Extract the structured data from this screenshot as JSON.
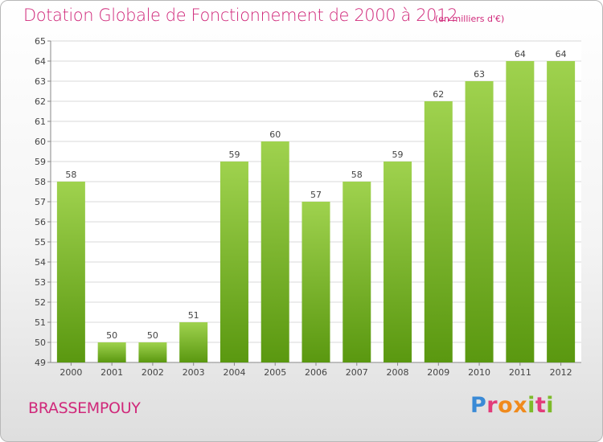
{
  "title": "Dotation Globale de Fonctionnement de 2000 à 2012",
  "unit_note": "(en milliers d'€)",
  "commune": "BRASSEMPOUY",
  "logo": "Proxiti",
  "colors": {
    "bar_light": "#9acd4a",
    "bar_dark": "#5c9a12",
    "title": "#d0287a"
  },
  "chart_data": {
    "type": "bar",
    "title": "Dotation Globale de Fonctionnement de 2000 à 2012",
    "subtitle": "(en milliers d'€)",
    "xlabel": "",
    "ylabel": "",
    "categories": [
      "2000",
      "2001",
      "2002",
      "2003",
      "2004",
      "2005",
      "2006",
      "2007",
      "2008",
      "2009",
      "2010",
      "2011",
      "2012"
    ],
    "values": [
      58,
      50,
      50,
      51,
      59,
      60,
      57,
      58,
      59,
      62,
      63,
      64,
      64
    ],
    "ylim": [
      49,
      65
    ],
    "yticks": [
      49,
      50,
      51,
      52,
      53,
      54,
      55,
      56,
      57,
      58,
      59,
      60,
      61,
      62,
      63,
      64,
      65
    ],
    "grid": true
  }
}
